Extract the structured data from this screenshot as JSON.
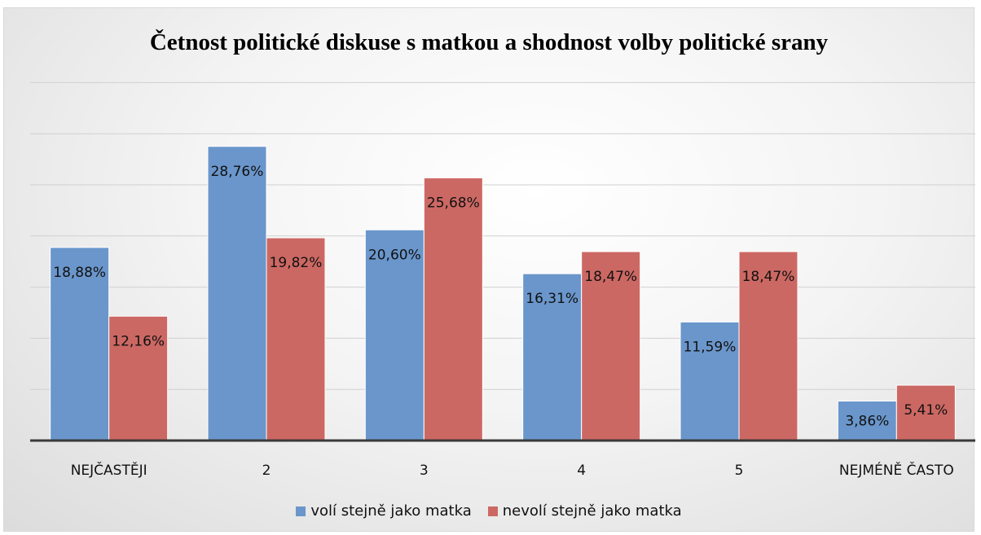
{
  "chart_data": {
    "type": "bar",
    "title": "Četnost politické diskuse s matkou a shodnost volby politické srany",
    "categories": [
      "NEJČASTĚJI",
      "2",
      "3",
      "4",
      "5",
      "NEJMÉNĚ ČASTO"
    ],
    "series": [
      {
        "name": "volí stejně jako matka",
        "color": "#6a96cb",
        "values": [
          18.88,
          28.76,
          20.6,
          16.31,
          11.59,
          3.86
        ],
        "labels": [
          "18,88%",
          "28,76%",
          "20,60%",
          "16,31%",
          "11,59%",
          "3,86%"
        ]
      },
      {
        "name": "nevolí stejně jako matka",
        "color": "#cc6863",
        "values": [
          12.16,
          19.82,
          25.68,
          18.47,
          18.47,
          5.41
        ],
        "labels": [
          "12,16%",
          "19,82%",
          "25,68%",
          "18,47%",
          "18,47%",
          "5,41%"
        ]
      }
    ],
    "ylim": [
      0,
      35
    ],
    "grid": true,
    "legend_position": "bottom"
  }
}
